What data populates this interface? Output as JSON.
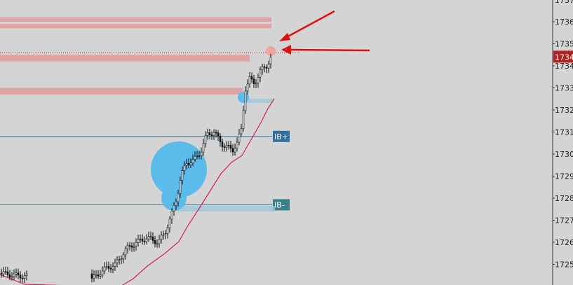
{
  "chart_data": {
    "type": "candlestick",
    "y_axis": {
      "ticks": [
        {
          "value": 1736,
          "label": "1736"
        },
        {
          "value": 1735,
          "label": "1735"
        },
        {
          "value": 1734,
          "label": "1734"
        },
        {
          "value": 1733,
          "label": "1733"
        },
        {
          "value": 1732,
          "label": "1732"
        },
        {
          "value": 1731,
          "label": "1731"
        },
        {
          "value": 1730,
          "label": "1730"
        },
        {
          "value": 1729,
          "label": "1729"
        },
        {
          "value": 1728,
          "label": "1728"
        },
        {
          "value": 1727,
          "label": "1727"
        },
        {
          "value": 1726,
          "label": "1726"
        },
        {
          "value": 1725,
          "label": "1725"
        }
      ],
      "top_partial_label": "1737",
      "current_price_label": "1734",
      "ylim": [
        1724.4,
        1736.9
      ]
    },
    "levels": [
      {
        "label": "IB+",
        "value": 1730.8,
        "color": "#2e6fa0"
      },
      {
        "label": "IB-",
        "value": 1727.7,
        "color": "#3a7f86"
      }
    ],
    "zones": [
      {
        "low": 1736.0,
        "high": 1736.2
      },
      {
        "low": 1735.7,
        "high": 1735.9
      },
      {
        "low": 1734.2,
        "high": 1734.5
      },
      {
        "low": 1732.7,
        "high": 1733.0
      }
    ],
    "current_price": 1734.4,
    "colors": {
      "zone": "#e09a9a",
      "bubble": "#5bbbeb",
      "ma": "#d81e5b",
      "price_badge": "#b22222",
      "arrow": "#e01010"
    }
  }
}
